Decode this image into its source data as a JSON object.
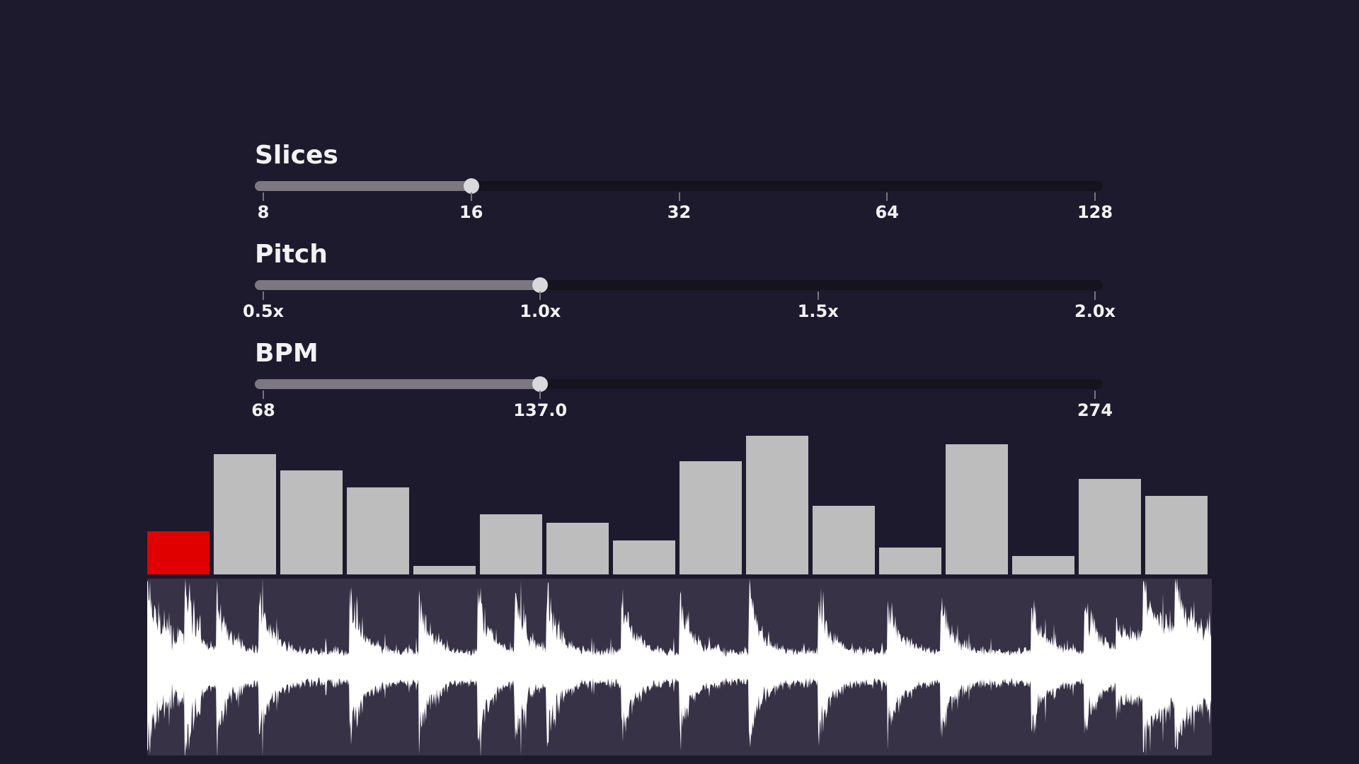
{
  "sliders": [
    {
      "title": "Slices",
      "value_fraction": 0.25,
      "ticks": [
        {
          "label": "8",
          "pos": 0
        },
        {
          "label": "16",
          "pos": 0.25
        },
        {
          "label": "32",
          "pos": 0.5
        },
        {
          "label": "64",
          "pos": 0.75
        },
        {
          "label": "128",
          "pos": 1
        }
      ]
    },
    {
      "title": "Pitch",
      "value_fraction": 0.333,
      "ticks": [
        {
          "label": "0.5x",
          "pos": 0
        },
        {
          "label": "1.0x",
          "pos": 0.333
        },
        {
          "label": "1.5x",
          "pos": 0.667
        },
        {
          "label": "2.0x",
          "pos": 1
        }
      ]
    },
    {
      "title": "BPM",
      "value_fraction": 0.333,
      "ticks": [
        {
          "label": "68",
          "pos": 0
        },
        {
          "label": "137.0",
          "pos": 0.333
        },
        {
          "label": "274",
          "pos": 1
        }
      ]
    }
  ],
  "slice_levels": [
    0.31,
    0.86,
    0.74,
    0.62,
    0.06,
    0.43,
    0.37,
    0.24,
    0.81,
    0.99,
    0.49,
    0.19,
    0.93,
    0.13,
    0.68,
    0.56
  ],
  "active_slice": 0,
  "colors": {
    "background": "#1e1a2e",
    "active_slice": "#e00000",
    "slice": "#bdbdbd",
    "waveform": "#ffffff",
    "wave_panel": "#373246"
  }
}
